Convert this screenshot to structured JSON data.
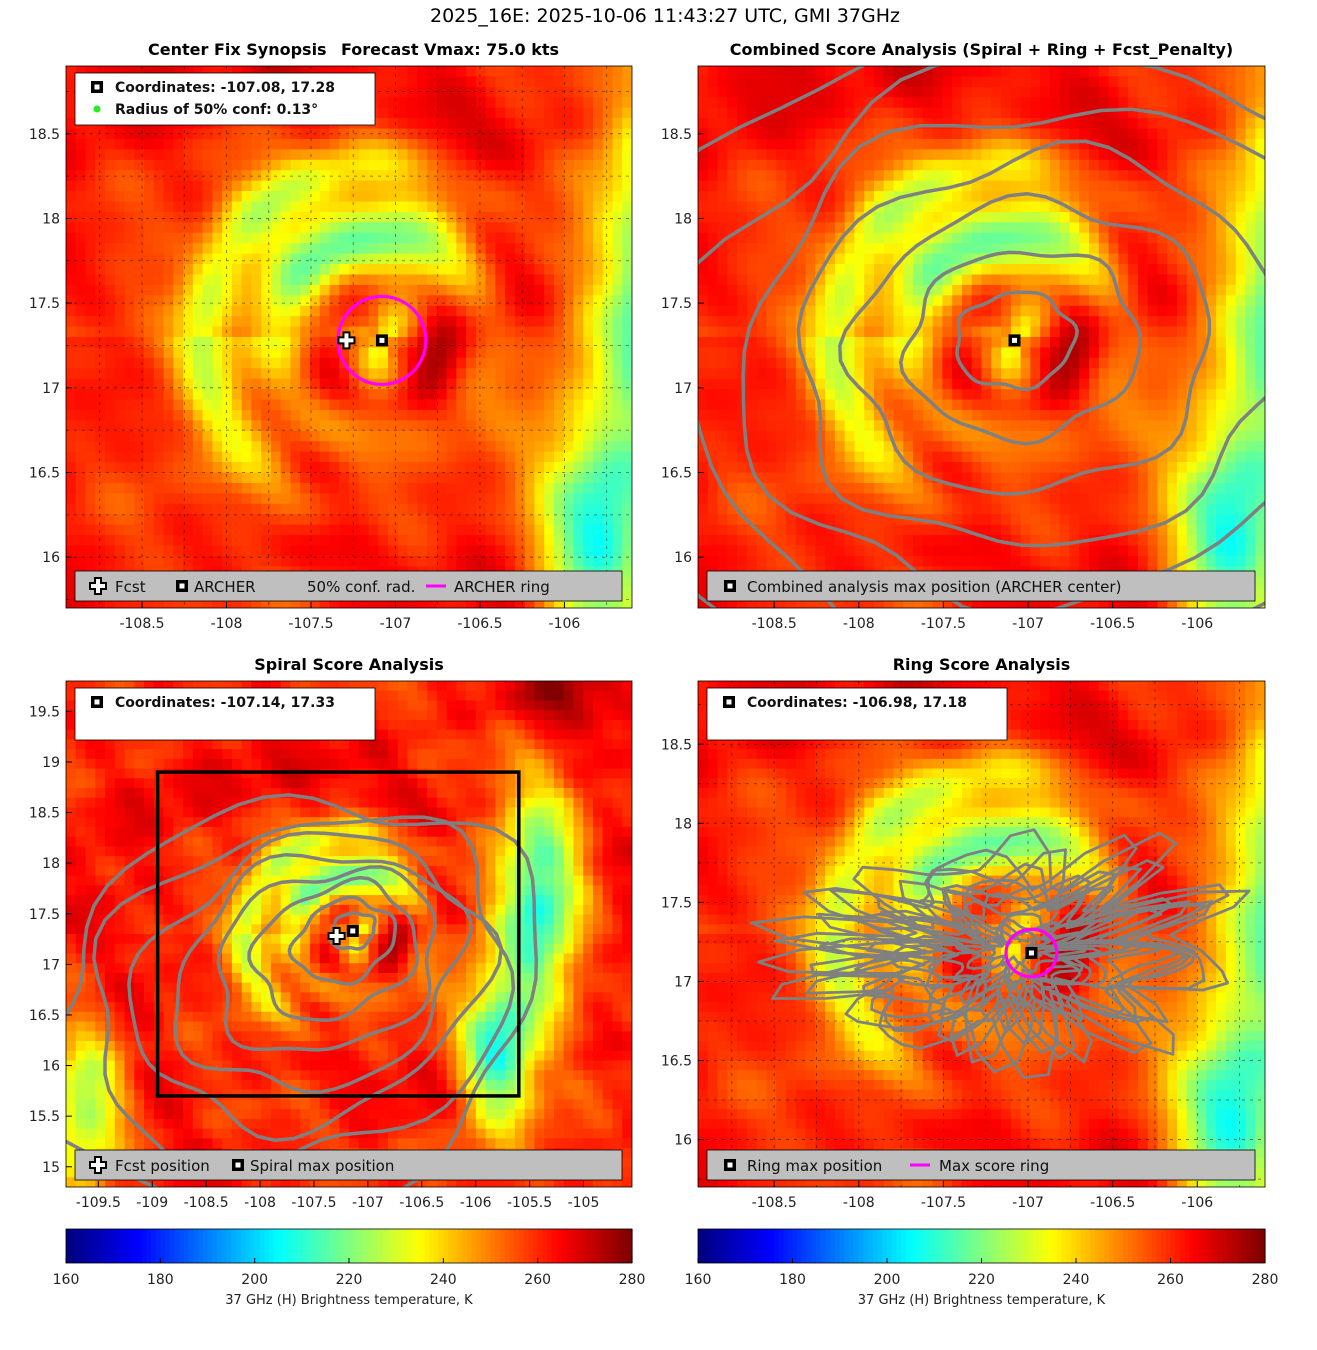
{
  "figure": {
    "title": "2025_16E: 2025-10-06 11:43:27 UTC, GMI 37GHz"
  },
  "colors": {
    "contour": "#808080",
    "ring": "#ff00ff",
    "legend_bg": "#bfbfbf",
    "marker": "#000000",
    "conf_dot": "#22ee22"
  },
  "chart_data": [
    {
      "type": "heatmap",
      "id": "center-fix",
      "title_left": "Center Fix Synopsis",
      "title_right": "Forecast Vmax: 75.0 kts",
      "xlim": [
        -108.95,
        -105.6
      ],
      "ylim": [
        15.7,
        18.9
      ],
      "xticks": [
        -108.5,
        -108,
        -107.5,
        -107,
        -106.5,
        -106
      ],
      "xtick_labels": [
        "-108.5",
        "-108",
        "-107.5",
        "-107",
        "-106.5",
        "-106"
      ],
      "yticks": [
        16,
        16.5,
        17,
        17.5,
        18,
        18.5
      ],
      "ytick_labels": [
        "16",
        "16.5",
        "17",
        "17.5",
        "18",
        "18.5"
      ],
      "grid": true,
      "center": [
        -107.08,
        17.28
      ],
      "forecast_position": [
        -107.29,
        17.28
      ],
      "ring_center": [
        -107.08,
        17.28
      ],
      "ring_radius": 0.26,
      "info_lines": [
        "Coordinates: -107.08, 17.28",
        "Radius of 50% conf: 0.13°"
      ],
      "legend_items": [
        "Fcst",
        "ARCHER",
        "50% conf. rad.",
        "ARCHER ring"
      ]
    },
    {
      "type": "heatmap",
      "id": "combined-score",
      "title": "Combined Score Analysis (Spiral + Ring + Fcst_Penalty)",
      "xlim": [
        -108.95,
        -105.6
      ],
      "ylim": [
        15.7,
        18.9
      ],
      "xticks": [
        -108.5,
        -108,
        -107.5,
        -107,
        -106.5,
        -106
      ],
      "xtick_labels": [
        "-108.5",
        "-108",
        "-107.5",
        "-107",
        "-106.5",
        "-106"
      ],
      "yticks": [
        16,
        16.5,
        17,
        17.5,
        18,
        18.5
      ],
      "ytick_labels": [
        "16",
        "16.5",
        "17",
        "17.5",
        "18",
        "18.5"
      ],
      "grid": false,
      "center": [
        -107.08,
        17.28
      ],
      "contour_levels_deg": [
        0.28,
        0.55,
        0.85,
        1.15,
        1.45,
        1.75,
        2.1
      ],
      "legend_items": [
        "Combined analysis max position (ARCHER center)"
      ]
    },
    {
      "type": "heatmap",
      "id": "spiral-score",
      "title": "Spiral Score Analysis",
      "xlim": [
        -109.8,
        -104.55
      ],
      "ylim": [
        14.8,
        19.8
      ],
      "xticks": [
        -109.5,
        -109,
        -108.5,
        -108,
        -107.5,
        -107,
        -106.5,
        -106,
        -105.5,
        -105
      ],
      "xtick_labels": [
        "-109.5",
        "-109",
        "-108.5",
        "-108",
        "-107.5",
        "-107",
        "-106.5",
        "-106",
        "-105.5",
        "-105"
      ],
      "yticks": [
        15,
        15.5,
        16,
        16.5,
        17,
        17.5,
        18,
        18.5,
        19,
        19.5
      ],
      "ytick_labels": [
        "15",
        "15.5",
        "16",
        "16.5",
        "17",
        "17.5",
        "18",
        "18.5",
        "19",
        "19.5"
      ],
      "grid": false,
      "center": [
        -107.14,
        17.33
      ],
      "forecast_position": [
        -107.29,
        17.28
      ],
      "search_box": {
        "x": [
          -108.95,
          -105.6
        ],
        "y": [
          15.7,
          18.9
        ]
      },
      "info_lines": [
        "Coordinates: -107.14, 17.33"
      ],
      "legend_items": [
        "Fcst position",
        "Spiral max position"
      ]
    },
    {
      "type": "heatmap",
      "id": "ring-score",
      "title": "Ring Score Analysis",
      "xlim": [
        -108.95,
        -105.6
      ],
      "ylim": [
        15.7,
        18.9
      ],
      "xticks": [
        -108.5,
        -108,
        -107.5,
        -107,
        -106.5,
        -106
      ],
      "xtick_labels": [
        "-108.5",
        "-108",
        "-107.5",
        "-107",
        "-106.5",
        "-106"
      ],
      "yticks": [
        16,
        16.5,
        17,
        17.5,
        18,
        18.5
      ],
      "ytick_labels": [
        "16",
        "16.5",
        "17",
        "17.5",
        "18",
        "18.5"
      ],
      "grid": true,
      "center": [
        -106.98,
        17.18
      ],
      "ring_center": [
        -106.98,
        17.18
      ],
      "ring_radius": 0.15,
      "info_lines": [
        "Coordinates: -106.98, 17.18"
      ],
      "legend_items": [
        "Ring max position",
        "Max score ring"
      ]
    }
  ],
  "colorbars": [
    {
      "min": 160,
      "max": 280,
      "ticks": [
        "160",
        "180",
        "200",
        "220",
        "240",
        "260",
        "280"
      ],
      "label": "37 GHz (H) Brightness temperature, K"
    },
    {
      "min": 160,
      "max": 280,
      "ticks": [
        "160",
        "180",
        "200",
        "220",
        "240",
        "260",
        "280"
      ],
      "label": "37 GHz (H) Brightness temperature, K"
    }
  ]
}
